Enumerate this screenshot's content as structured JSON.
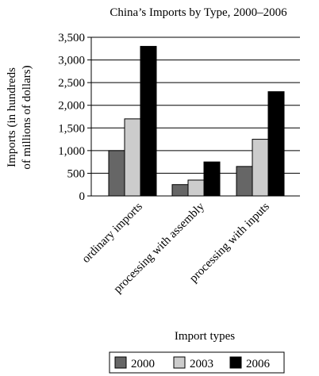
{
  "chart_data": {
    "type": "bar",
    "title": "China’s Imports by Type, 2000–2006",
    "ylabel_line1": "Imports (in hundreds",
    "ylabel_line2": "of millions of dollars)",
    "xlabel": "Import types",
    "categories": [
      "ordinary imports",
      "processing with assembly",
      "processing with inputs"
    ],
    "series": [
      {
        "name": "2000",
        "values": [
          1000,
          250,
          650
        ],
        "color": "#666666"
      },
      {
        "name": "2003",
        "values": [
          1700,
          350,
          1250
        ],
        "color": "#cccccc"
      },
      {
        "name": "2006",
        "values": [
          3300,
          750,
          2300
        ],
        "color": "#000000"
      }
    ],
    "ylim": [
      0,
      3500
    ],
    "yticks": [
      0,
      500,
      1000,
      1500,
      2000,
      2500,
      3000,
      3500
    ],
    "ytick_labels": [
      "0",
      "500",
      "1,000",
      "1,500",
      "2,000",
      "2,500",
      "3,000",
      "3,500"
    ],
    "grid": true,
    "legend_position": "bottom"
  }
}
